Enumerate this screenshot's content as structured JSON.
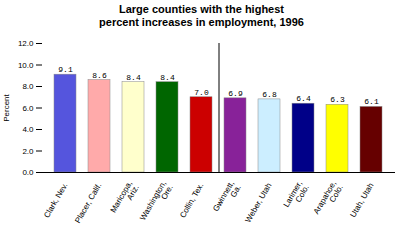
{
  "chart_data": {
    "type": "bar",
    "title": "Large counties with the highest\npercent increases in employment, 1996",
    "ylabel": "Percent",
    "categories": [
      "Clark, Nev.",
      "Placer, Calif.",
      "Maricopa,\nAriz.",
      "Washington,\nOre.",
      "Collin, Tex.",
      "Gwinnett,\nGa.",
      "Weber, Utah",
      "Larimer,\nColo.",
      "Arapahoe,\nColo.",
      "Utah, Utah"
    ],
    "values": [
      9.1,
      8.6,
      8.4,
      8.4,
      7.0,
      6.9,
      6.8,
      6.4,
      6.3,
      6.1
    ],
    "value_labels": [
      "9.1",
      "8.6",
      "8.4",
      "8.4",
      "7.0",
      "6.9",
      "6.8",
      "6.4",
      "6.3",
      "6.1"
    ],
    "colors": [
      "#5555dd",
      "#ffaaaa",
      "#ffffcc",
      "#006600",
      "#cc0000",
      "#882299",
      "#cceeff",
      "#000088",
      "#ffff00",
      "#660000"
    ],
    "ylim": [
      0,
      12.0
    ],
    "yticks": [
      {
        "value": 0,
        "label": "0.0"
      },
      {
        "value": 2,
        "label": "2.0"
      },
      {
        "value": 4,
        "label": "4.0"
      },
      {
        "value": 6,
        "label": "6.0"
      },
      {
        "value": 8,
        "label": "8.0"
      },
      {
        "value": 10,
        "label": "10.0"
      },
      {
        "value": 12,
        "label": "12.0"
      }
    ],
    "grid": false,
    "data_labels": true
  }
}
